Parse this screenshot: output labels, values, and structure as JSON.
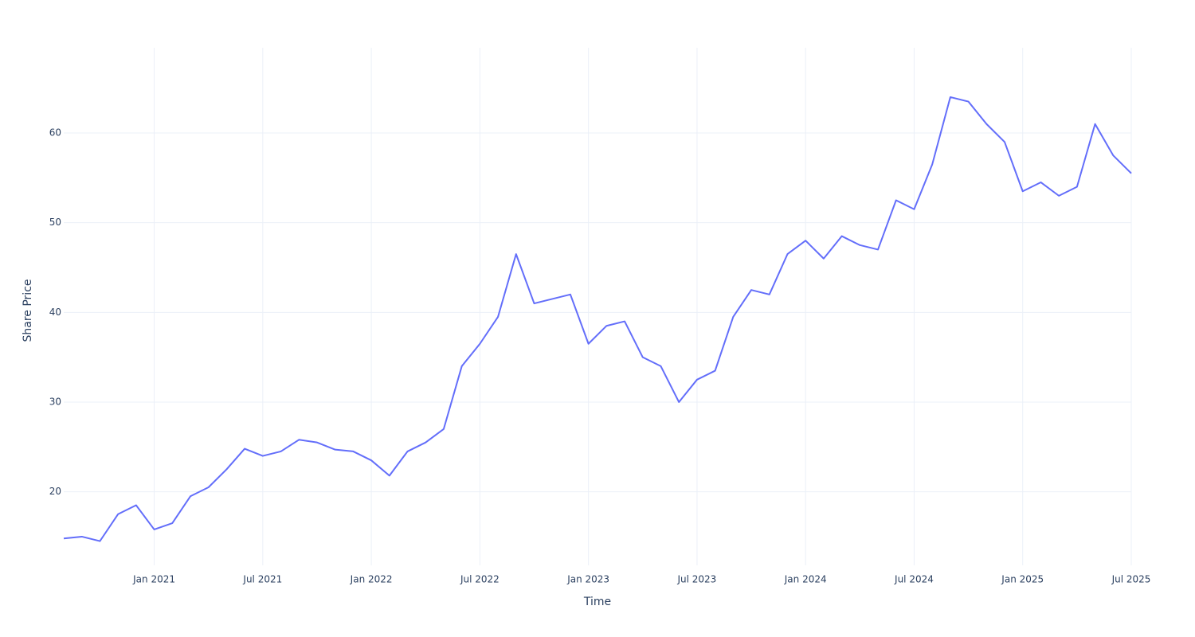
{
  "chart_data": {
    "type": "line",
    "x_label": "Time",
    "y_label": "Share Price",
    "x": [
      "2020-08",
      "2020-09",
      "2020-10",
      "2020-11",
      "2020-12",
      "2021-01",
      "2021-02",
      "2021-03",
      "2021-04",
      "2021-05",
      "2021-06",
      "2021-07",
      "2021-08",
      "2021-09",
      "2021-10",
      "2021-11",
      "2021-12",
      "2022-01",
      "2022-02",
      "2022-03",
      "2022-04",
      "2022-05",
      "2022-06",
      "2022-07",
      "2022-08",
      "2022-09",
      "2022-10",
      "2022-11",
      "2022-12",
      "2023-01",
      "2023-02",
      "2023-03",
      "2023-04",
      "2023-05",
      "2023-06",
      "2023-07",
      "2023-08",
      "2023-09",
      "2023-10",
      "2023-11",
      "2023-12",
      "2024-01",
      "2024-02",
      "2024-03",
      "2024-04",
      "2024-05",
      "2024-06",
      "2024-07",
      "2024-08",
      "2024-09",
      "2024-10",
      "2024-11",
      "2024-12",
      "2025-01",
      "2025-02",
      "2025-03",
      "2025-04",
      "2025-05",
      "2025-06",
      "2025-07"
    ],
    "series": [
      {
        "name": "Share Price",
        "color": "#636efa",
        "values": [
          14.8,
          15.0,
          14.5,
          17.5,
          18.5,
          15.8,
          16.5,
          19.5,
          20.5,
          22.5,
          24.8,
          24.0,
          24.5,
          25.8,
          25.5,
          24.7,
          24.5,
          23.5,
          21.8,
          24.5,
          25.5,
          27.0,
          34.0,
          36.5,
          39.5,
          46.5,
          41.0,
          41.5,
          42.0,
          36.5,
          38.5,
          39.0,
          35.0,
          34.0,
          30.0,
          32.5,
          33.5,
          39.5,
          42.5,
          42.0,
          46.5,
          48.0,
          46.0,
          48.5,
          47.5,
          47.0,
          52.5,
          51.5,
          56.5,
          64.0,
          63.5,
          61.0,
          59.0,
          53.5,
          54.5,
          53.0,
          54.0,
          61.0,
          57.5,
          55.5
        ]
      }
    ],
    "xlim": [
      "2020-08",
      "2025-07"
    ],
    "xticks": [
      {
        "value": "2021-01",
        "label": "Jan 2021"
      },
      {
        "value": "2021-07",
        "label": "Jul 2021"
      },
      {
        "value": "2022-01",
        "label": "Jan 2022"
      },
      {
        "value": "2022-07",
        "label": "Jul 2022"
      },
      {
        "value": "2023-01",
        "label": "Jan 2023"
      },
      {
        "value": "2023-07",
        "label": "Jul 2023"
      },
      {
        "value": "2024-01",
        "label": "Jan 2024"
      },
      {
        "value": "2024-07",
        "label": "Jul 2024"
      },
      {
        "value": "2025-01",
        "label": "Jan 2025"
      },
      {
        "value": "2025-07",
        "label": "Jul 2025"
      }
    ],
    "ylim": [
      11.8,
      69.5
    ],
    "yticks": [
      20,
      30,
      40,
      50,
      60
    ],
    "grid": true
  }
}
